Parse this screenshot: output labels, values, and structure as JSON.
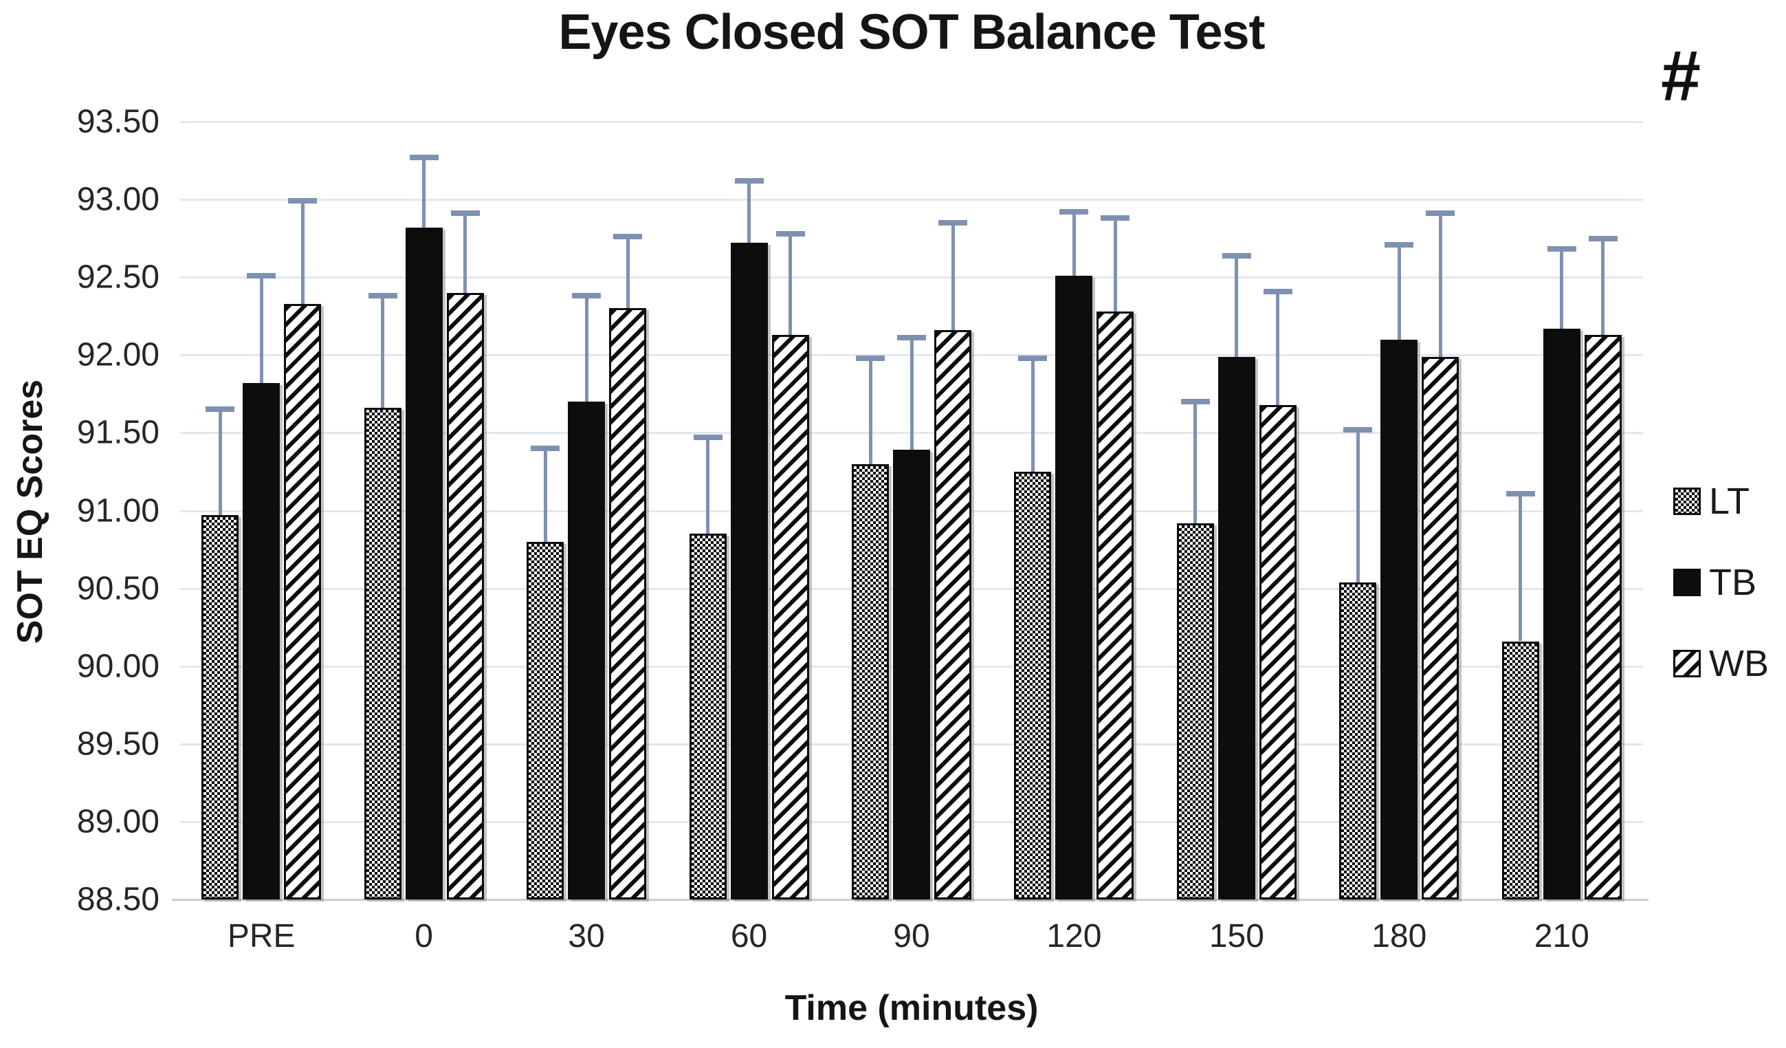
{
  "figure": {
    "title": "Eyes Closed SOT Balance Test",
    "significance_marker": "#",
    "y_axis_title": "SOT EQ Scores",
    "x_axis_title": "Time (minutes)"
  },
  "legend": {
    "items": [
      {
        "label": "LT",
        "pattern": "checker"
      },
      {
        "label": "TB",
        "pattern": "solid"
      },
      {
        "label": "WB",
        "pattern": "diagonal"
      }
    ]
  },
  "colors": {
    "error_bar": "#7e91b0",
    "gridline": "#e2e7ef",
    "axis_line": "#c9d0da",
    "bar_fill": "#0d0d0d",
    "text": "#1b1b1b"
  },
  "chart_data": {
    "type": "bar",
    "title": "Eyes Closed SOT Balance Test",
    "xlabel": "Time (minutes)",
    "ylabel": "SOT EQ Scores",
    "categories": [
      "PRE",
      "0",
      "30",
      "60",
      "90",
      "120",
      "150",
      "180",
      "210"
    ],
    "ylim": [
      88.5,
      93.5
    ],
    "ytick_step": 0.5,
    "grid": true,
    "legend_position": "right",
    "annotation": "#",
    "error_direction": "plus",
    "series": [
      {
        "name": "LT",
        "pattern": "checker",
        "values": [
          90.97,
          91.66,
          90.8,
          90.85,
          91.3,
          91.25,
          90.92,
          90.54,
          90.16
        ],
        "errors": [
          0.68,
          0.72,
          0.6,
          0.62,
          0.68,
          0.73,
          0.78,
          0.98,
          0.95
        ]
      },
      {
        "name": "TB",
        "pattern": "solid",
        "values": [
          91.82,
          92.82,
          91.7,
          92.72,
          91.39,
          92.51,
          91.99,
          92.1,
          92.17
        ],
        "errors": [
          0.69,
          0.45,
          0.68,
          0.4,
          0.72,
          0.41,
          0.65,
          0.61,
          0.51
        ]
      },
      {
        "name": "WB",
        "pattern": "diagonal",
        "values": [
          92.33,
          92.4,
          92.3,
          92.13,
          92.16,
          92.28,
          91.68,
          91.99,
          92.13
        ],
        "errors": [
          0.66,
          0.51,
          0.46,
          0.65,
          0.69,
          0.6,
          0.73,
          0.92,
          0.62
        ]
      }
    ]
  }
}
